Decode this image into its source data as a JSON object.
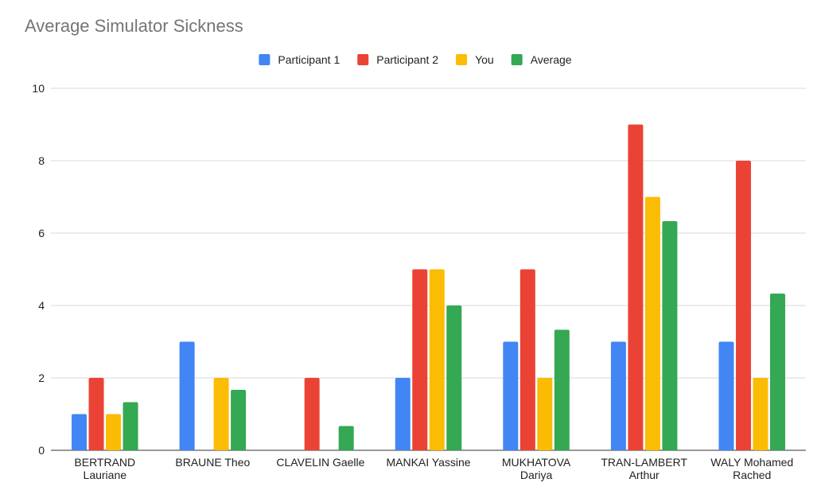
{
  "chart_data": {
    "type": "bar",
    "title": "Average Simulator Sickness",
    "xlabel": "",
    "ylabel": "",
    "ylim": [
      0,
      10
    ],
    "yticks": [
      "0",
      "2",
      "4",
      "6",
      "8",
      "10"
    ],
    "grid": true,
    "legend_position": "top-center",
    "categories": [
      [
        "BERTRAND",
        "Lauriane"
      ],
      [
        "BRAUNE Theo"
      ],
      [
        "CLAVELIN Gaelle"
      ],
      [
        "MANKAI Yassine"
      ],
      [
        "MUKHATOVA",
        "Dariya"
      ],
      [
        "TRAN-LAMBERT",
        "Arthur"
      ],
      [
        "WALY Mohamed",
        "Rached"
      ]
    ],
    "series": [
      {
        "name": "Participant 1",
        "color": "#4285f4",
        "values": [
          1,
          3,
          0,
          2,
          3,
          3,
          3
        ]
      },
      {
        "name": "Participant 2",
        "color": "#ea4335",
        "values": [
          2,
          0,
          2,
          5,
          5,
          9,
          8
        ]
      },
      {
        "name": "You",
        "color": "#fbbc04",
        "values": [
          1,
          2,
          0,
          5,
          2,
          7,
          2
        ]
      },
      {
        "name": "Average",
        "color": "#34a853",
        "values": [
          1.33,
          1.67,
          0.67,
          4,
          3.33,
          6.33,
          4.33
        ]
      }
    ]
  }
}
